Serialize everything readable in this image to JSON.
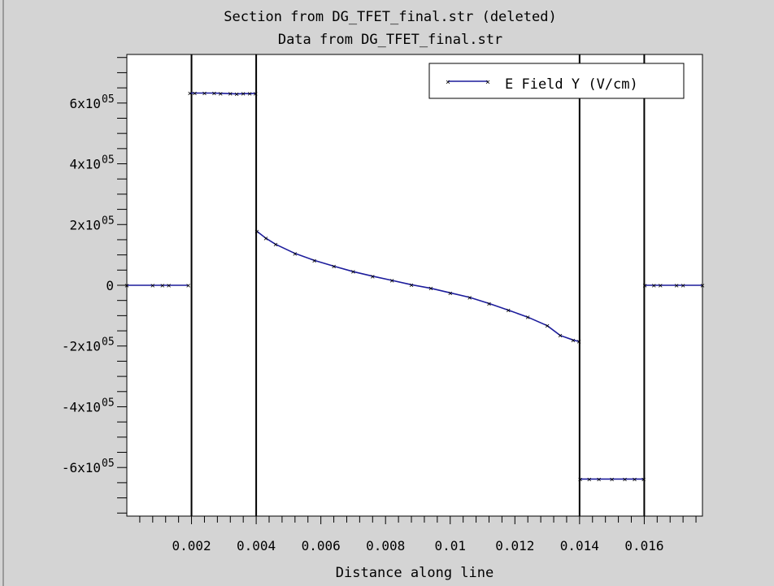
{
  "chart_data": {
    "type": "line",
    "title": "Section from DG_TFET_final.str (deleted)",
    "subtitle": "Data from DG_TFET_final.str",
    "xlabel": "Distance along line",
    "ylabel": "",
    "xlim": [
      0.0,
      0.0178
    ],
    "ylim": [
      -760000,
      760000
    ],
    "x_ticks": [
      0.002,
      0.004,
      0.006,
      0.008,
      0.01,
      0.012,
      0.014,
      0.016
    ],
    "x_tick_labels": [
      "0.002",
      "0.004",
      "0.006",
      "0.008",
      "0.01",
      "0.012",
      "0.014",
      "0.016"
    ],
    "y_ticks": [
      {
        "value": 600000,
        "mantissa": "6x10",
        "exp": "05"
      },
      {
        "value": 400000,
        "mantissa": "4x10",
        "exp": "05"
      },
      {
        "value": 200000,
        "mantissa": "2x10",
        "exp": "05"
      },
      {
        "value": 0,
        "mantissa": "0",
        "exp": ""
      },
      {
        "value": -200000,
        "mantissa": "-2x10",
        "exp": "05"
      },
      {
        "value": -400000,
        "mantissa": "-4x10",
        "exp": "05"
      },
      {
        "value": -600000,
        "mantissa": "-6x10",
        "exp": "05"
      }
    ],
    "region_boundaries_x": [
      0.002,
      0.004,
      0.014,
      0.016
    ],
    "grid": false,
    "legend_position": "top-right",
    "series": [
      {
        "name": "E Field Y (V/cm)",
        "color": "#1c1c9c",
        "marker": "x",
        "segments": [
          [
            [
              0.0,
              0
            ],
            [
              0.0008,
              0
            ],
            [
              0.0011,
              0
            ],
            [
              0.0013,
              0
            ],
            [
              0.0019,
              0
            ]
          ],
          [
            [
              0.00195,
              633000
            ],
            [
              0.0021,
              633000
            ],
            [
              0.0024,
              633000
            ],
            [
              0.0027,
              633000
            ],
            [
              0.0029,
              632000
            ],
            [
              0.0032,
              631000
            ],
            [
              0.0034,
              630000
            ],
            [
              0.0036,
              631000
            ],
            [
              0.0038,
              631000
            ],
            [
              0.00398,
              632000
            ]
          ],
          [
            [
              0.00402,
              178000
            ],
            [
              0.0043,
              155000
            ],
            [
              0.0046,
              135000
            ],
            [
              0.0052,
              105000
            ],
            [
              0.0058,
              82000
            ],
            [
              0.0064,
              63000
            ],
            [
              0.007,
              45000
            ],
            [
              0.0076,
              30000
            ],
            [
              0.0082,
              16000
            ],
            [
              0.0088,
              2000
            ],
            [
              0.0094,
              -10000
            ],
            [
              0.01,
              -25000
            ],
            [
              0.0106,
              -40000
            ],
            [
              0.0112,
              -60000
            ],
            [
              0.0118,
              -82000
            ],
            [
              0.0124,
              -105000
            ],
            [
              0.013,
              -133000
            ],
            [
              0.0134,
              -165000
            ],
            [
              0.0138,
              -180000
            ],
            [
              0.01398,
              -185000
            ]
          ],
          [
            [
              0.01402,
              -638000
            ],
            [
              0.0143,
              -638000
            ],
            [
              0.0146,
              -638000
            ],
            [
              0.015,
              -638000
            ],
            [
              0.0154,
              -638000
            ],
            [
              0.0157,
              -638000
            ],
            [
              0.01598,
              -638000
            ]
          ],
          [
            [
              0.01602,
              0
            ],
            [
              0.0163,
              0
            ],
            [
              0.0165,
              0
            ],
            [
              0.017,
              0
            ],
            [
              0.0172,
              0
            ],
            [
              0.0178,
              0
            ]
          ]
        ]
      }
    ]
  }
}
